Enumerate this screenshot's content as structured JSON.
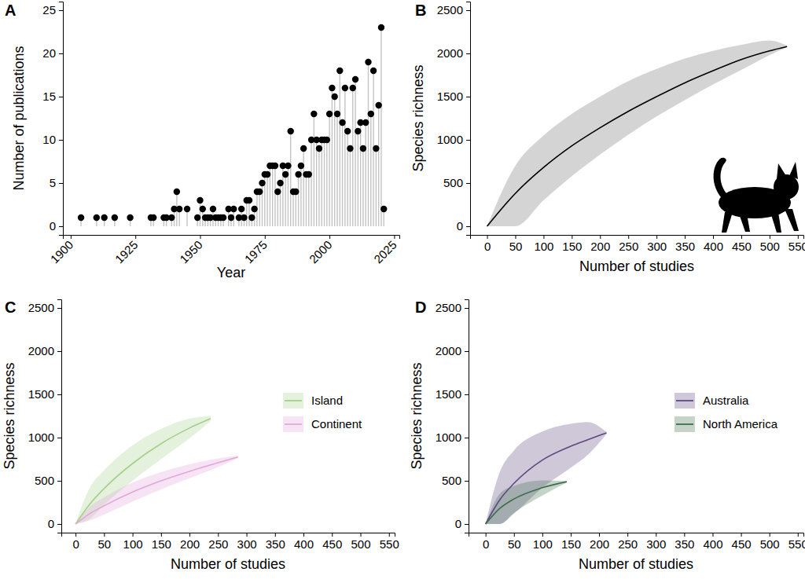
{
  "chart_data": [
    {
      "type": "lollipop",
      "title": "A",
      "xlabel": "Year",
      "ylabel": "Number of publications",
      "x": [
        1904,
        1910,
        1913,
        1917,
        1923,
        1931,
        1932,
        1936,
        1937,
        1939,
        1940,
        1941,
        1942,
        1945,
        1949,
        1950,
        1951,
        1952,
        1953,
        1954,
        1955,
        1956,
        1957,
        1958,
        1959,
        1961,
        1962,
        1963,
        1965,
        1966,
        1967,
        1968,
        1969,
        1970,
        1971,
        1972,
        1973,
        1974,
        1975,
        1976,
        1977,
        1978,
        1979,
        1980,
        1981,
        1982,
        1983,
        1984,
        1985,
        1986,
        1987,
        1988,
        1989,
        1990,
        1991,
        1992,
        1993,
        1994,
        1995,
        1996,
        1997,
        1998,
        1999,
        2000,
        2001,
        2002,
        2003,
        2004,
        2005,
        2006,
        2007,
        2008,
        2009,
        2010,
        2011,
        2012,
        2013,
        2014,
        2015,
        2016,
        2017,
        2018,
        2019,
        2020,
        2021
      ],
      "values": [
        1,
        1,
        1,
        1,
        1,
        1,
        1,
        1,
        1,
        1,
        2,
        4,
        2,
        2,
        1,
        3,
        2,
        1,
        1,
        1,
        2,
        1,
        1,
        1,
        1,
        2,
        1,
        2,
        1,
        2,
        1,
        3,
        3,
        1,
        2,
        4,
        4,
        5,
        6,
        6,
        7,
        7,
        7,
        4,
        5,
        7,
        6,
        7,
        11,
        4,
        4,
        6,
        7,
        9,
        6,
        6,
        10,
        13,
        10,
        9,
        10,
        10,
        10,
        13,
        16,
        15,
        13,
        18,
        12,
        16,
        11,
        9,
        16,
        17,
        11,
        12,
        9,
        12,
        19,
        13,
        18,
        9,
        14,
        23,
        2
      ],
      "color": "#000000",
      "xlim": [
        1897,
        2027
      ],
      "xticks": [
        1900,
        1925,
        1950,
        1975,
        2000,
        2025
      ],
      "ylim": [
        -1,
        26
      ],
      "yticks": [
        0,
        5,
        10,
        15,
        20,
        25
      ]
    },
    {
      "type": "line",
      "title": "B",
      "xlabel": "Number of studies",
      "ylabel": "Species richness",
      "series": [
        {
          "color": "#000000",
          "x": [
            0,
            50,
            100,
            150,
            200,
            250,
            300,
            350,
            400,
            450,
            500,
            531
          ],
          "values": [
            0,
            380,
            680,
            930,
            1140,
            1330,
            1500,
            1660,
            1800,
            1930,
            2030,
            2080
          ],
          "lower": [
            0,
            0,
            300,
            580,
            830,
            1060,
            1270,
            1460,
            1640,
            1810,
            1980,
            2070
          ],
          "upper": [
            0,
            700,
            1050,
            1300,
            1500,
            1680,
            1820,
            1940,
            2030,
            2100,
            2150,
            2090
          ]
        }
      ],
      "xlim": [
        -30,
        560
      ],
      "xticks": [
        0,
        50,
        100,
        150,
        200,
        250,
        300,
        350,
        400,
        450,
        500,
        550
      ],
      "ylim": [
        -100,
        2600
      ],
      "yticks": [
        0,
        500,
        1000,
        1500,
        2000,
        2500
      ]
    },
    {
      "type": "line",
      "title": "C",
      "xlabel": "Number of studies",
      "ylabel": "Species richness",
      "legend": "right",
      "series": [
        {
          "name": "Island",
          "color": "#a6cf8b",
          "x": [
            0,
            25,
            50,
            100,
            150,
            200,
            237
          ],
          "values": [
            0,
            230,
            410,
            700,
            930,
            1110,
            1220
          ],
          "lower": [
            0,
            60,
            220,
            500,
            750,
            990,
            1190
          ],
          "upper": [
            0,
            420,
            620,
            910,
            1100,
            1220,
            1250
          ]
        },
        {
          "name": "Continent",
          "color": "#e2a6dc",
          "x": [
            0,
            25,
            50,
            100,
            150,
            200,
            250,
            285
          ],
          "values": [
            0,
            120,
            210,
            370,
            500,
            610,
            710,
            775
          ],
          "lower": [
            0,
            40,
            110,
            260,
            400,
            530,
            660,
            760
          ],
          "upper": [
            0,
            200,
            310,
            480,
            600,
            690,
            760,
            790
          ]
        }
      ],
      "xlim": [
        -25,
        560
      ],
      "xticks": [
        0,
        50,
        100,
        150,
        200,
        250,
        300,
        350,
        400,
        450,
        500,
        550
      ],
      "ylim": [
        -100,
        2600
      ],
      "yticks": [
        0,
        500,
        1000,
        1500,
        2000,
        2500
      ]
    },
    {
      "type": "line",
      "title": "D",
      "xlabel": "Number of studies",
      "ylabel": "Species richness",
      "legend": "right",
      "series": [
        {
          "name": "Australia",
          "color": "#5e4a7e",
          "x": [
            0,
            25,
            50,
            100,
            150,
            180,
            213
          ],
          "values": [
            0,
            280,
            470,
            740,
            900,
            975,
            1055
          ],
          "lower": [
            0,
            0,
            120,
            420,
            650,
            800,
            1040
          ],
          "upper": [
            0,
            600,
            850,
            1070,
            1160,
            1180,
            1065
          ]
        },
        {
          "name": "North America",
          "color": "#3f6e4d",
          "x": [
            0,
            25,
            50,
            100,
            143
          ],
          "values": [
            0,
            180,
            290,
            420,
            490
          ],
          "lower": [
            0,
            0,
            130,
            330,
            480
          ],
          "upper": [
            0,
            350,
            440,
            505,
            495
          ]
        }
      ],
      "xlim": [
        -30,
        560
      ],
      "xticks": [
        0,
        50,
        100,
        150,
        200,
        250,
        300,
        350,
        400,
        450,
        500,
        550
      ],
      "ylim": [
        -100,
        2600
      ],
      "yticks": [
        0,
        500,
        1000,
        1500,
        2000,
        2500
      ]
    }
  ]
}
